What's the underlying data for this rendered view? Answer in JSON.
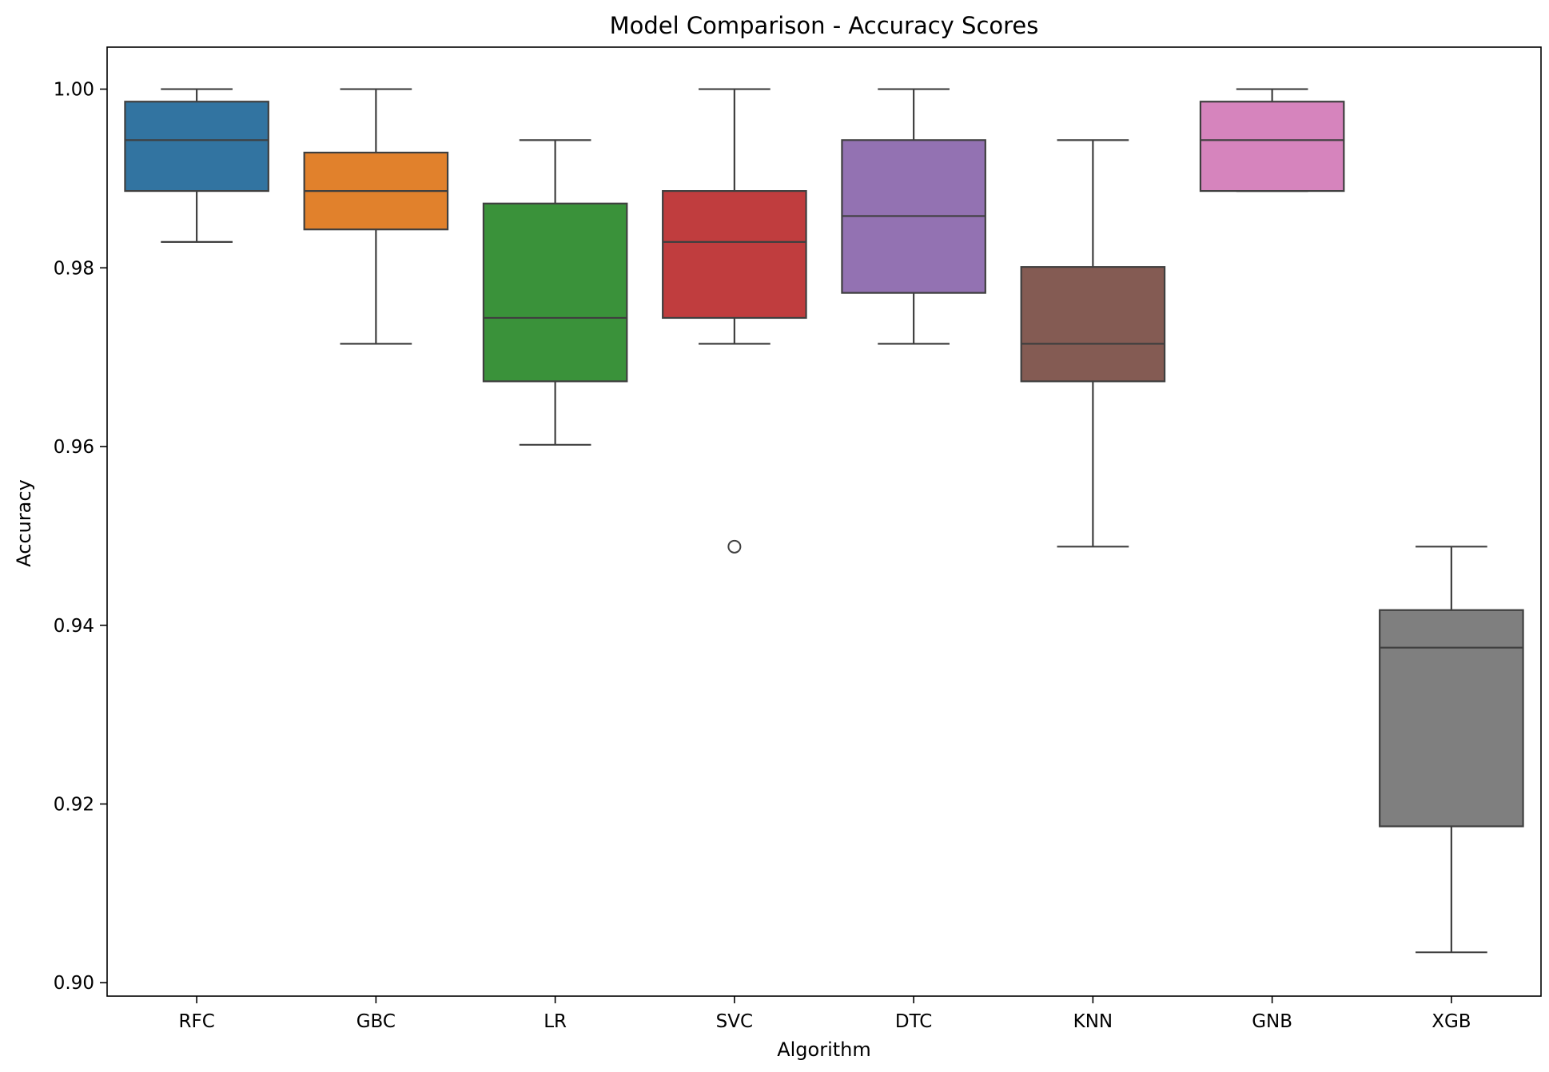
{
  "chart_data": {
    "type": "box",
    "title": "Model Comparison - Accuracy Scores",
    "xlabel": "Algorithm",
    "ylabel": "Accuracy",
    "ylim": [
      0.8985,
      1.0047
    ],
    "yticks": [
      0.9,
      0.92,
      0.94,
      0.96,
      0.98,
      1.0
    ],
    "ytick_labels": [
      "0.90",
      "0.92",
      "0.94",
      "0.96",
      "0.98",
      "1.00"
    ],
    "grid": false,
    "line_color": "#3f3f3f",
    "categories": [
      "RFC",
      "GBC",
      "LR",
      "SVC",
      "DTC",
      "KNN",
      "GNB",
      "XGB"
    ],
    "boxes": [
      {
        "name": "RFC",
        "color": "#3274a1",
        "whisker_low": 0.9829,
        "q1": 0.9886,
        "median": 0.9943,
        "q3": 0.9986,
        "whisker_high": 1.0,
        "outliers": []
      },
      {
        "name": "GBC",
        "color": "#e1812c",
        "whisker_low": 0.9715,
        "q1": 0.9843,
        "median": 0.9886,
        "q3": 0.9929,
        "whisker_high": 1.0,
        "outliers": []
      },
      {
        "name": "LR",
        "color": "#3a923a",
        "whisker_low": 0.9602,
        "q1": 0.9673,
        "median": 0.9744,
        "q3": 0.9872,
        "whisker_high": 0.9943,
        "outliers": []
      },
      {
        "name": "SVC",
        "color": "#c03d3e",
        "whisker_low": 0.9715,
        "q1": 0.9744,
        "median": 0.9829,
        "q3": 0.9886,
        "whisker_high": 1.0,
        "outliers": [
          0.9488
        ]
      },
      {
        "name": "DTC",
        "color": "#9372b2",
        "whisker_low": 0.9715,
        "q1": 0.9772,
        "median": 0.9858,
        "q3": 0.9943,
        "whisker_high": 1.0,
        "outliers": []
      },
      {
        "name": "KNN",
        "color": "#845b53",
        "whisker_low": 0.9488,
        "q1": 0.9673,
        "median": 0.9715,
        "q3": 0.9801,
        "whisker_high": 0.9943,
        "outliers": []
      },
      {
        "name": "GNB",
        "color": "#d684bd",
        "whisker_low": 0.9886,
        "q1": 0.9886,
        "median": 0.9943,
        "q3": 0.9986,
        "whisker_high": 1.0,
        "outliers": []
      },
      {
        "name": "XGB",
        "color": "#7f7f7f",
        "whisker_low": 0.9034,
        "q1": 0.9175,
        "median": 0.9375,
        "q3": 0.9417,
        "whisker_high": 0.9488,
        "outliers": []
      }
    ]
  }
}
